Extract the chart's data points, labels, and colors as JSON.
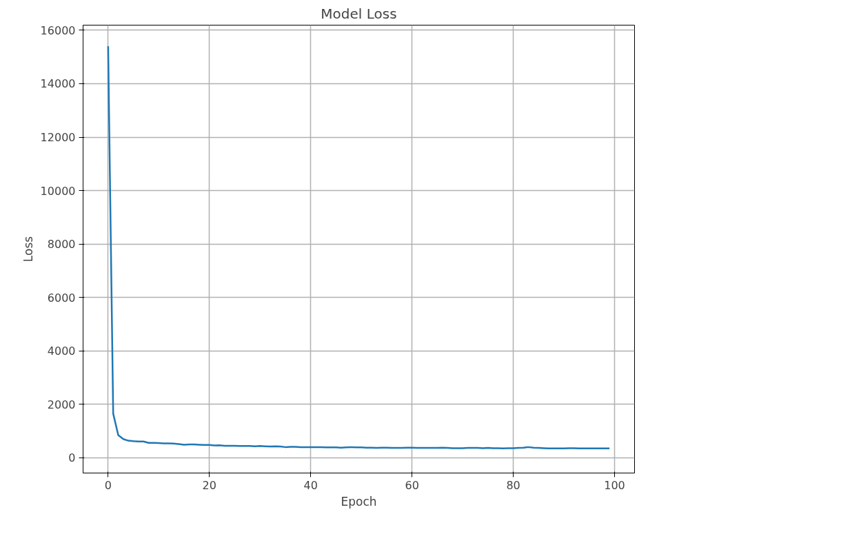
{
  "chart_data": {
    "type": "line",
    "title": "Model Loss",
    "xlabel": "Epoch",
    "ylabel": "Loss",
    "x": [
      0,
      1,
      2,
      3,
      4,
      5,
      6,
      7,
      8,
      9,
      10,
      11,
      12,
      13,
      14,
      15,
      16,
      17,
      18,
      19,
      20,
      21,
      22,
      23,
      24,
      25,
      26,
      27,
      28,
      29,
      30,
      31,
      32,
      33,
      34,
      35,
      36,
      37,
      38,
      39,
      40,
      41,
      42,
      43,
      44,
      45,
      46,
      47,
      48,
      49,
      50,
      51,
      52,
      53,
      54,
      55,
      56,
      57,
      58,
      59,
      60,
      61,
      62,
      63,
      64,
      65,
      66,
      67,
      68,
      69,
      70,
      71,
      72,
      73,
      74,
      75,
      76,
      77,
      78,
      79,
      80,
      81,
      82,
      83,
      84,
      85,
      86,
      87,
      88,
      89,
      90,
      91,
      92,
      93,
      94,
      95,
      96,
      97,
      98,
      99
    ],
    "series": [
      {
        "color": "#1f77b4",
        "values": [
          15400,
          1650,
          850,
          700,
          640,
          620,
          610,
          610,
          560,
          560,
          550,
          540,
          540,
          530,
          510,
          490,
          500,
          500,
          490,
          480,
          480,
          460,
          470,
          450,
          450,
          450,
          440,
          440,
          440,
          430,
          440,
          430,
          420,
          430,
          420,
          400,
          410,
          410,
          400,
          400,
          400,
          400,
          400,
          390,
          390,
          390,
          380,
          390,
          400,
          390,
          390,
          380,
          380,
          370,
          380,
          380,
          370,
          370,
          370,
          380,
          380,
          370,
          370,
          370,
          370,
          370,
          380,
          370,
          360,
          360,
          360,
          370,
          370,
          370,
          360,
          370,
          360,
          360,
          350,
          360,
          360,
          370,
          380,
          400,
          380,
          370,
          360,
          350,
          350,
          350,
          350,
          360,
          360,
          350,
          350,
          350,
          350,
          350,
          350,
          350
        ]
      }
    ],
    "xlim": [
      -4.95,
      103.95
    ],
    "ylim": [
      -570,
      16190
    ],
    "xticks": [
      0,
      20,
      40,
      60,
      80,
      100
    ],
    "yticks": [
      0,
      2000,
      4000,
      6000,
      8000,
      10000,
      12000,
      14000,
      16000
    ],
    "grid": true
  }
}
